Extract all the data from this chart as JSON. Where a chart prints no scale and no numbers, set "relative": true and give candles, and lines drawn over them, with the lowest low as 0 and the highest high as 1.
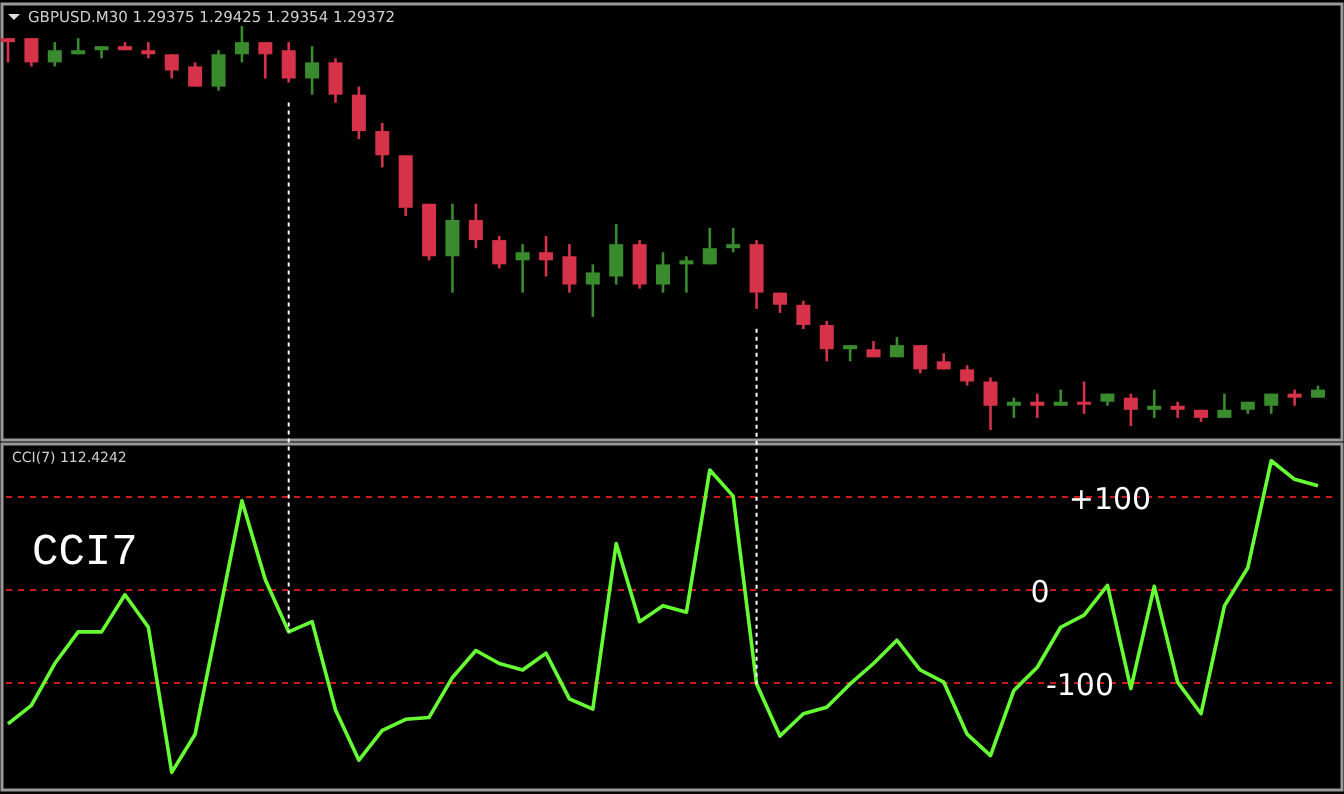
{
  "chart_data": [
    {
      "type": "candlestick",
      "title": "GBPUSD.M30  1.29375 1.29425 1.29354 1.29372",
      "relative": true,
      "categories": [
        null,
        null,
        null,
        null,
        null,
        null,
        null,
        null,
        null,
        null,
        null,
        null,
        null,
        null,
        null,
        null,
        null,
        null,
        null,
        null,
        null,
        null,
        null,
        null,
        null,
        null,
        null,
        null,
        null,
        null,
        null,
        null,
        null,
        null,
        null,
        null,
        null,
        null,
        null,
        null,
        null,
        null,
        null,
        null,
        null,
        null,
        null,
        null,
        null,
        null,
        null,
        null,
        null,
        null,
        null,
        null,
        null
      ],
      "ohlc": [
        [
          0.97,
          0.97,
          0.91,
          0.96
        ],
        [
          0.97,
          0.97,
          0.9,
          0.91
        ],
        [
          0.91,
          0.96,
          0.9,
          0.94
        ],
        [
          0.93,
          0.97,
          0.93,
          0.94
        ],
        [
          0.94,
          0.95,
          0.92,
          0.95
        ],
        [
          0.95,
          0.96,
          0.94,
          0.94
        ],
        [
          0.94,
          0.96,
          0.92,
          0.93
        ],
        [
          0.93,
          0.93,
          0.87,
          0.89
        ],
        [
          0.9,
          0.91,
          0.85,
          0.85
        ],
        [
          0.85,
          0.94,
          0.84,
          0.93
        ],
        [
          0.93,
          1.0,
          0.91,
          0.96
        ],
        [
          0.96,
          0.96,
          0.87,
          0.93
        ],
        [
          0.94,
          0.96,
          0.86,
          0.87
        ],
        [
          0.87,
          0.95,
          0.83,
          0.91
        ],
        [
          0.91,
          0.92,
          0.81,
          0.83
        ],
        [
          0.83,
          0.85,
          0.72,
          0.74
        ],
        [
          0.74,
          0.76,
          0.65,
          0.68
        ],
        [
          0.68,
          0.68,
          0.53,
          0.55
        ],
        [
          0.56,
          0.56,
          0.42,
          0.43
        ],
        [
          0.43,
          0.56,
          0.34,
          0.52
        ],
        [
          0.52,
          0.56,
          0.45,
          0.47
        ],
        [
          0.47,
          0.48,
          0.4,
          0.41
        ],
        [
          0.42,
          0.46,
          0.34,
          0.44
        ],
        [
          0.44,
          0.48,
          0.38,
          0.42
        ],
        [
          0.43,
          0.46,
          0.34,
          0.36
        ],
        [
          0.36,
          0.41,
          0.28,
          0.39
        ],
        [
          0.38,
          0.51,
          0.36,
          0.46
        ],
        [
          0.46,
          0.47,
          0.35,
          0.36
        ],
        [
          0.36,
          0.44,
          0.34,
          0.41
        ],
        [
          0.41,
          0.43,
          0.34,
          0.42
        ],
        [
          0.41,
          0.5,
          0.41,
          0.45
        ],
        [
          0.45,
          0.5,
          0.44,
          0.46
        ],
        [
          0.46,
          0.47,
          0.3,
          0.34
        ],
        [
          0.34,
          0.34,
          0.29,
          0.31
        ],
        [
          0.31,
          0.32,
          0.25,
          0.26
        ],
        [
          0.26,
          0.27,
          0.17,
          0.2
        ],
        [
          0.2,
          0.21,
          0.17,
          0.21
        ],
        [
          0.2,
          0.22,
          0.18,
          0.18
        ],
        [
          0.18,
          0.23,
          0.18,
          0.21
        ],
        [
          0.21,
          0.21,
          0.14,
          0.15
        ],
        [
          0.17,
          0.19,
          0.15,
          0.15
        ],
        [
          0.15,
          0.16,
          0.11,
          0.12
        ],
        [
          0.12,
          0.13,
          0,
          0.06
        ],
        [
          0.06,
          0.08,
          0.03,
          0.07
        ],
        [
          0.07,
          0.09,
          0.03,
          0.06
        ],
        [
          0.06,
          0.1,
          0.06,
          0.07
        ],
        [
          0.07,
          0.12,
          0.04,
          0.065
        ],
        [
          0.07,
          0.09,
          0.06,
          0.09
        ],
        [
          0.08,
          0.09,
          0.01,
          0.05
        ],
        [
          0.05,
          0.1,
          0.03,
          0.06
        ],
        [
          0.06,
          0.07,
          0.03,
          0.05
        ],
        [
          0.05,
          0.05,
          0.02,
          0.03
        ],
        [
          0.03,
          0.09,
          0.03,
          0.05
        ],
        [
          0.05,
          0.07,
          0.04,
          0.07
        ],
        [
          0.06,
          0.09,
          0.04,
          0.09
        ],
        [
          0.09,
          0.1,
          0.06,
          0.08
        ],
        [
          0.08,
          0.11,
          0.08,
          0.1
        ]
      ],
      "colors": [
        "#d6334a",
        "#d6334a",
        "#3a8a2e",
        "#3a8a2e",
        "#3a8a2e",
        "#d6334a",
        "#d6334a",
        "#d6334a",
        "#d6334a",
        "#3a8a2e",
        "#3a8a2e",
        "#d6334a",
        "#d6334a",
        "#3a8a2e",
        "#d6334a",
        "#d6334a",
        "#d6334a",
        "#d6334a",
        "#d6334a",
        "#3a8a2e",
        "#d6334a",
        "#d6334a",
        "#3a8a2e",
        "#d6334a",
        "#d6334a",
        "#3a8a2e",
        "#3a8a2e",
        "#d6334a",
        "#3a8a2e",
        "#3a8a2e",
        "#3a8a2e",
        "#3a8a2e",
        "#d6334a",
        "#d6334a",
        "#d6334a",
        "#d6334a",
        "#3a8a2e",
        "#d6334a",
        "#3a8a2e",
        "#d6334a",
        "#d6334a",
        "#d6334a",
        "#d6334a",
        "#3a8a2e",
        "#d6334a",
        "#3a8a2e",
        "#d6334a",
        "#3a8a2e",
        "#d6334a",
        "#3a8a2e",
        "#d6334a",
        "#d6334a",
        "#3a8a2e",
        "#3a8a2e",
        "#3a8a2e",
        "#d6334a",
        "#3a8a2e"
      ]
    },
    {
      "type": "line",
      "title": "CCI(7) 112.4242",
      "annotations": [
        "CCI7"
      ],
      "ylim": [
        -215,
        157
      ],
      "categories": [
        null,
        null,
        null,
        null,
        null,
        null,
        null,
        null,
        null,
        null,
        null,
        null,
        null,
        null,
        null,
        null,
        null,
        null,
        null,
        null,
        null,
        null,
        null,
        null,
        null,
        null,
        null,
        null,
        null,
        null,
        null,
        null,
        null,
        null,
        null,
        null,
        null,
        null,
        null,
        null,
        null,
        null,
        null,
        null,
        null,
        null,
        null,
        null,
        null,
        null,
        null,
        null,
        null,
        null,
        null,
        null,
        null
      ],
      "series": [
        {
          "color": "#66ff33",
          "values": [
            -144,
            -124,
            -79,
            -45,
            -45,
            -5,
            -40,
            -196,
            -155,
            -30,
            96,
            11,
            -45,
            -34,
            -129,
            -183,
            -151,
            -139,
            -137,
            -94,
            -65,
            -79,
            -86,
            -68,
            -117,
            -128,
            50,
            -34,
            -17,
            -24,
            129,
            101,
            -101,
            -157,
            -133,
            -126,
            -101,
            -79,
            -54,
            -86,
            -99,
            -155,
            -178,
            -108,
            -83,
            -40,
            -27,
            5,
            -106,
            4,
            -99,
            -133,
            -17,
            24,
            139,
            119,
            112
          ]
        }
      ],
      "ref_lines": [
        {
          "axis": "y",
          "value": 100,
          "label": "+100",
          "color": "#d01818",
          "line_style": "dashed"
        },
        {
          "axis": "y",
          "value": 0,
          "label": "0",
          "color": "#d01818",
          "line_style": "dashed"
        },
        {
          "axis": "y",
          "value": -100,
          "label": "-100",
          "color": "#d01818",
          "line_style": "dashed"
        }
      ]
    }
  ]
}
